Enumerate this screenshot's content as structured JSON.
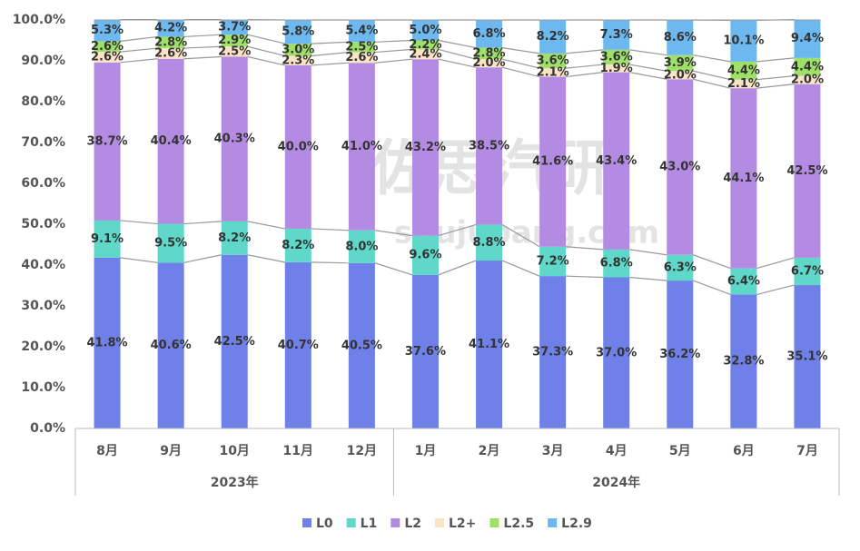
{
  "chart_data": {
    "type": "stacked_bar",
    "watermark": {
      "name": "佐思汽研",
      "url": "shujubang.com"
    },
    "categories": [
      "8月",
      "9月",
      "10月",
      "11月",
      "12月",
      "1月",
      "2月",
      "3月",
      "4月",
      "5月",
      "6月",
      "7月"
    ],
    "groups": [
      {
        "label": "2023年",
        "count": 5
      },
      {
        "label": "2024年",
        "count": 7
      }
    ],
    "series": [
      {
        "name": "L0",
        "color": "#6f80e8",
        "values": [
          41.8,
          40.6,
          42.5,
          40.7,
          40.5,
          37.6,
          41.1,
          37.3,
          37.0,
          36.2,
          32.8,
          35.1
        ],
        "value_labels": [
          "41.8%",
          "40.6%",
          "42.5%",
          "40.7%",
          "40.5%",
          "37.6%",
          "41.1%",
          "37.3%",
          "37.0%",
          "36.2%",
          "32.8%",
          "35.1%"
        ]
      },
      {
        "name": "L1",
        "color": "#5fd7c9",
        "values": [
          9.1,
          9.5,
          8.2,
          8.2,
          8.0,
          9.6,
          8.8,
          7.2,
          6.8,
          6.3,
          6.4,
          6.7
        ],
        "value_labels": [
          "9.1%",
          "9.5%",
          "8.2%",
          "8.2%",
          "8.0%",
          "9.6%",
          "8.8%",
          "7.2%",
          "6.8%",
          "6.3%",
          "6.4%",
          "6.7%"
        ]
      },
      {
        "name": "L2",
        "color": "#b48be2",
        "values": [
          38.7,
          40.4,
          40.3,
          40.0,
          41.0,
          43.2,
          38.5,
          41.6,
          43.4,
          43.0,
          44.1,
          42.5
        ],
        "value_labels": [
          "38.7%",
          "40.4%",
          "40.3%",
          "40.0%",
          "41.0%",
          "43.2%",
          "38.5%",
          "41.6%",
          "43.4%",
          "43.0%",
          "44.1%",
          "42.5%"
        ]
      },
      {
        "name": "L2+",
        "color": "#fbe3c6",
        "values": [
          2.6,
          2.6,
          2.5,
          2.3,
          2.6,
          2.4,
          2.0,
          2.1,
          1.9,
          2.0,
          2.1,
          2.0
        ],
        "value_labels": [
          "2.6%",
          "2.6%",
          "2.5%",
          "2.3%",
          "2.6%",
          "2.4%",
          "2.0%",
          "2.1%",
          "1.9%",
          "2.0%",
          "2.1%",
          "2.0%"
        ]
      },
      {
        "name": "L2.5",
        "color": "#9fe06b",
        "values": [
          2.6,
          2.8,
          2.9,
          3.0,
          2.5,
          2.2,
          2.8,
          3.6,
          3.6,
          3.9,
          4.4,
          4.4
        ],
        "value_labels": [
          "2.6%",
          "2.8%",
          "2.9%",
          "3.0%",
          "2.5%",
          "2.2%",
          "2.8%",
          "3.6%",
          "3.6%",
          "3.9%",
          "4.4%",
          "4.4%"
        ]
      },
      {
        "name": "L2.9",
        "color": "#6db9ef",
        "values": [
          5.3,
          4.2,
          3.7,
          5.8,
          5.4,
          5.0,
          6.8,
          8.2,
          7.3,
          8.6,
          10.1,
          9.4
        ],
        "value_labels": [
          "5.3%",
          "4.2%",
          "3.7%",
          "5.8%",
          "5.4%",
          "5.0%",
          "6.8%",
          "8.2%",
          "7.3%",
          "8.6%",
          "10.1%",
          "9.4%"
        ]
      }
    ],
    "ylim": [
      0,
      100
    ],
    "yticks": [
      {
        "value": 0,
        "label": "0.0%"
      },
      {
        "value": 10,
        "label": "10.0%"
      },
      {
        "value": 20,
        "label": "20.0%"
      },
      {
        "value": 30,
        "label": "30.0%"
      },
      {
        "value": 40,
        "label": "40.0%"
      },
      {
        "value": 50,
        "label": "50.0%"
      },
      {
        "value": 60,
        "label": "60.0%"
      },
      {
        "value": 70,
        "label": "70.0%"
      },
      {
        "value": 80,
        "label": "80.0%"
      },
      {
        "value": 90,
        "label": "90.0%"
      },
      {
        "value": 100,
        "label": "100.0%"
      }
    ],
    "legend": "bottom"
  }
}
